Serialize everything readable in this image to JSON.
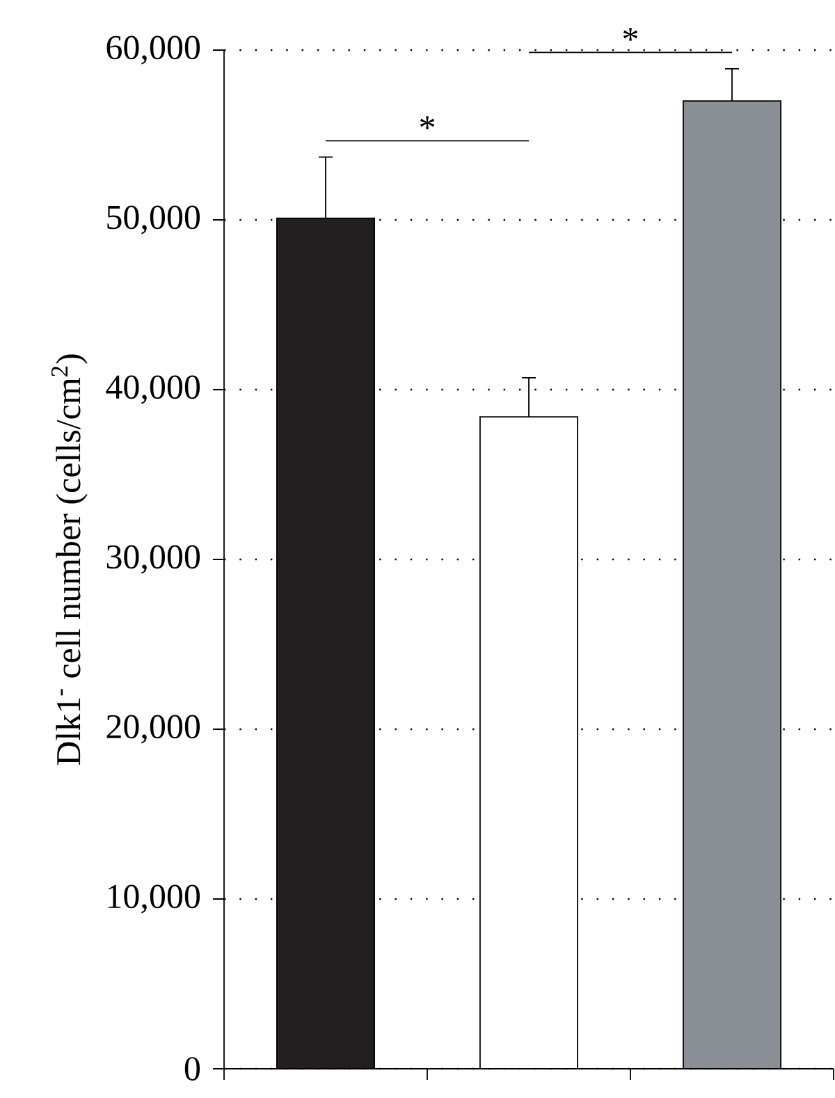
{
  "chart_data": {
    "type": "bar",
    "ylabel": "Dlk1$^{-}$ cell number (cells/cm$^{2}$)",
    "categories": [
      null,
      null,
      null
    ],
    "values": [
      50100,
      38400,
      57000
    ],
    "errors": [
      3600,
      2300,
      1900
    ],
    "colors": [
      "#231f20",
      "#ffffff",
      "#8a8f96"
    ],
    "ylim": [
      0,
      60000
    ],
    "yticks": [
      {
        "value": 0,
        "label": "0"
      },
      {
        "value": 10000,
        "label": "10,000"
      },
      {
        "value": 20000,
        "label": "20,000"
      },
      {
        "value": 30000,
        "label": "30,000"
      },
      {
        "value": 40000,
        "label": "40,000"
      },
      {
        "value": 50000,
        "label": "50,000"
      },
      {
        "value": 60000,
        "label": "60,000"
      }
    ],
    "grid": "y",
    "tick_labels": "y",
    "annotations": [
      "*",
      "*"
    ]
  }
}
